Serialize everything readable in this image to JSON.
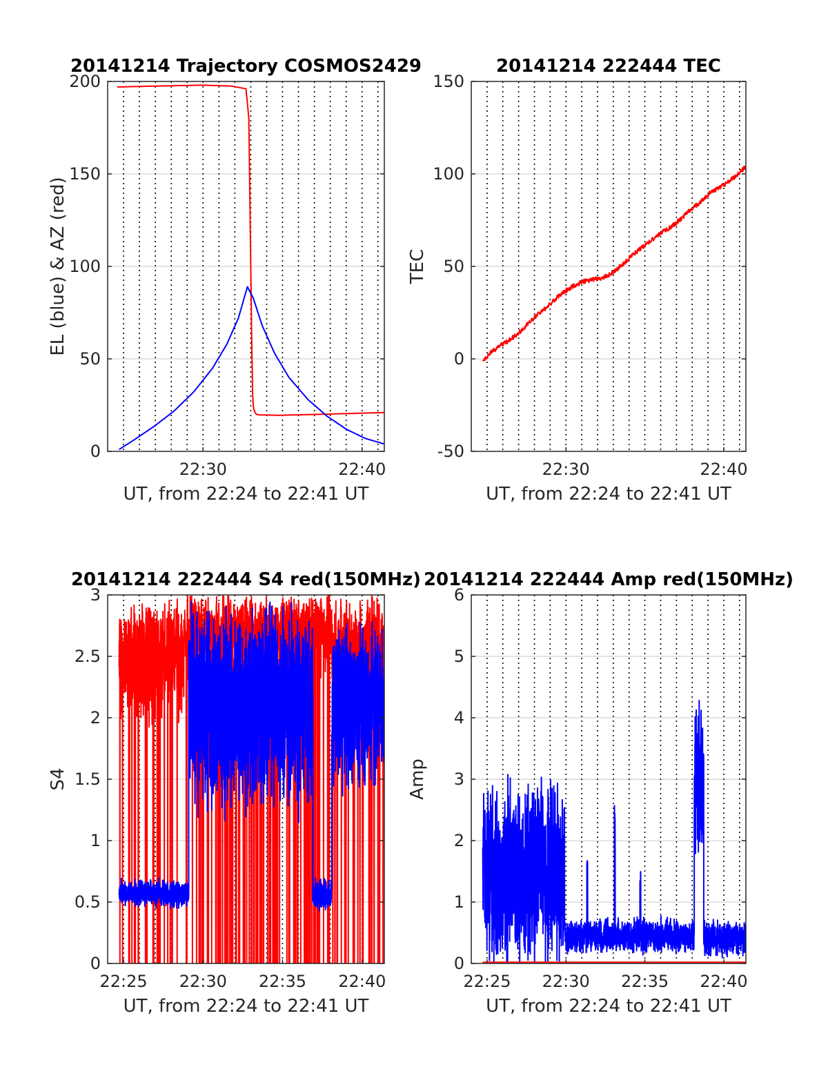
{
  "chart_data": [
    {
      "type": "line",
      "title": "20141214 Trajectory COSMOS2429",
      "xlabel": "UT, from 22:24 to 22:41 UT",
      "ylabel": "EL (blue) & AZ (red)",
      "xlim": [
        22.4,
        22.69
      ],
      "ylim": [
        0,
        200
      ],
      "xticks": [
        {
          "v": 22.5,
          "label": "22:30"
        },
        {
          "v": 22.6667,
          "label": "22:40"
        }
      ],
      "yticks": [
        {
          "v": 0,
          "label": "0"
        },
        {
          "v": 50,
          "label": "50"
        },
        {
          "v": 100,
          "label": "100"
        },
        {
          "v": 150,
          "label": "150"
        },
        {
          "v": 200,
          "label": "200"
        }
      ],
      "grid": "y-solid, x-dotted",
      "vlines": [
        22.4167,
        22.4333,
        22.45,
        22.4667,
        22.4833,
        22.5,
        22.5167,
        22.5333,
        22.55,
        22.5667,
        22.5833,
        22.6,
        22.6167,
        22.6333,
        22.65,
        22.6667,
        22.6833
      ],
      "series": [
        {
          "color": "#ff0000",
          "x": [
            22.41,
            22.45,
            22.5,
            22.53,
            22.545,
            22.548,
            22.5495,
            22.551,
            22.552,
            22.553,
            22.5545,
            22.556,
            22.56,
            22.58,
            22.62,
            22.69
          ],
          "y": [
            197,
            197.5,
            198,
            197.5,
            196,
            180,
            120,
            60,
            30,
            23,
            21,
            20,
            19.7,
            19.5,
            20,
            21
          ]
        },
        {
          "color": "#0000ff",
          "x": [
            22.412,
            22.43,
            22.45,
            22.47,
            22.49,
            22.51,
            22.525,
            22.537,
            22.5465,
            22.5525,
            22.562,
            22.575,
            22.59,
            22.61,
            22.63,
            22.65,
            22.67,
            22.69
          ],
          "y": [
            1,
            7,
            14,
            22,
            32,
            45,
            58,
            72,
            89,
            83,
            68,
            53,
            40,
            28,
            19,
            12,
            7,
            4
          ]
        }
      ]
    },
    {
      "type": "line",
      "title": "20141214 222444 TEC",
      "xlabel": "UT, from 22:24 to 22:41 UT",
      "ylabel": "TEC",
      "xlim": [
        22.4,
        22.69
      ],
      "ylim": [
        -50,
        150
      ],
      "xticks": [
        {
          "v": 22.5,
          "label": "22:30"
        },
        {
          "v": 22.6667,
          "label": "22:40"
        }
      ],
      "yticks": [
        {
          "v": -50,
          "label": "-50"
        },
        {
          "v": 0,
          "label": "0"
        },
        {
          "v": 50,
          "label": "50"
        },
        {
          "v": 100,
          "label": "100"
        },
        {
          "v": 150,
          "label": "150"
        }
      ],
      "grid": "y-solid, x-dotted",
      "vlines": [
        22.4167,
        22.4333,
        22.45,
        22.4667,
        22.4833,
        22.5,
        22.5167,
        22.5333,
        22.55,
        22.5667,
        22.5833,
        22.6,
        22.6167,
        22.6333,
        22.65,
        22.6667,
        22.6833
      ],
      "series": [
        {
          "color": "#ff0000",
          "noise": 1.2,
          "x": [
            22.412,
            22.42,
            22.43,
            22.44,
            22.45,
            22.46,
            22.47,
            22.48,
            22.49,
            22.5,
            22.51,
            22.52,
            22.53,
            22.54,
            22.55,
            22.56,
            22.57,
            22.58,
            22.59,
            22.6,
            22.61,
            22.62,
            22.63,
            22.64,
            22.65,
            22.66,
            22.67,
            22.68,
            22.69
          ],
          "y": [
            -1,
            3,
            7,
            10,
            14,
            19,
            24,
            28,
            33,
            37,
            40,
            42,
            43,
            44,
            47,
            51,
            56,
            60,
            64,
            68,
            71,
            75,
            80,
            84,
            89,
            92,
            95,
            99,
            104
          ]
        }
      ]
    },
    {
      "type": "line",
      "title": "20141214 222444 S4 red(150MHz)",
      "xlabel": "UT, from 22:24 to 22:41 UT",
      "ylabel": "S4",
      "xlim": [
        22.4,
        22.69
      ],
      "ylim": [
        0,
        3
      ],
      "xticks": [
        {
          "v": 22.4167,
          "label": "22:25"
        },
        {
          "v": 22.5,
          "label": "22:30"
        },
        {
          "v": 22.5833,
          "label": "22:35"
        },
        {
          "v": 22.6667,
          "label": "22:40"
        }
      ],
      "yticks": [
        {
          "v": 0,
          "label": "0"
        },
        {
          "v": 0.5,
          "label": "0.5"
        },
        {
          "v": 1,
          "label": "1"
        },
        {
          "v": 1.5,
          "label": "1.5"
        },
        {
          "v": 2,
          "label": "2"
        },
        {
          "v": 2.5,
          "label": "2.5"
        },
        {
          "v": 3,
          "label": "3"
        }
      ],
      "grid": "y-solid, x-dotted",
      "vlines": [
        22.4167,
        22.4333,
        22.45,
        22.4667,
        22.4833,
        22.5,
        22.5167,
        22.5333,
        22.55,
        22.5667,
        22.5833,
        22.6,
        22.6167,
        22.6333,
        22.65,
        22.6667,
        22.6833
      ],
      "series": [
        {
          "color": "#ff0000",
          "noisy": true,
          "segments": [
            {
              "x0": 22.412,
              "x1": 22.48,
              "base": 2.55,
              "amp": 0.5,
              "cap": 3.0,
              "dropouts": 0.04
            },
            {
              "x0": 22.48,
              "x1": 22.635,
              "base": 2.8,
              "amp": 0.4,
              "cap": 3.0,
              "dropouts": 0.07
            },
            {
              "x0": 22.635,
              "x1": 22.69,
              "base": 2.6,
              "amp": 0.5,
              "cap": 3.0,
              "dropouts": 0.05
            }
          ]
        },
        {
          "color": "#0000ff",
          "noisy": true,
          "segments": [
            {
              "x0": 22.412,
              "x1": 22.485,
              "base": 0.57,
              "amp": 0.1,
              "cap": 3.0,
              "dropouts": 0
            },
            {
              "x0": 22.485,
              "x1": 22.615,
              "base": 2.1,
              "amp": 0.8,
              "cap": 3.0,
              "dropouts": 0
            },
            {
              "x0": 22.615,
              "x1": 22.635,
              "base": 0.55,
              "amp": 0.12,
              "cap": 3.0,
              "dropouts": 0
            },
            {
              "x0": 22.635,
              "x1": 22.69,
              "base": 2.1,
              "amp": 0.6,
              "cap": 3.0,
              "dropouts": 0
            }
          ]
        }
      ]
    },
    {
      "type": "line",
      "title": "20141214 222444 Amp red(150MHz)",
      "xlabel": "UT, from 22:24 to 22:41 UT",
      "ylabel": "Amp",
      "xlim": [
        22.4,
        22.69
      ],
      "ylim": [
        0,
        6
      ],
      "xticks": [
        {
          "v": 22.4167,
          "label": "22:25"
        },
        {
          "v": 22.5,
          "label": "22:30"
        },
        {
          "v": 22.5833,
          "label": "22:35"
        },
        {
          "v": 22.6667,
          "label": "22:40"
        }
      ],
      "yticks": [
        {
          "v": 0,
          "label": "0"
        },
        {
          "v": 1,
          "label": "1"
        },
        {
          "v": 2,
          "label": "2"
        },
        {
          "v": 3,
          "label": "3"
        },
        {
          "v": 4,
          "label": "4"
        },
        {
          "v": 5,
          "label": "5"
        },
        {
          "v": 6,
          "label": "6"
        }
      ],
      "grid": "y-solid, x-dotted",
      "vlines": [
        22.4167,
        22.4333,
        22.45,
        22.4667,
        22.4833,
        22.5,
        22.5167,
        22.5333,
        22.55,
        22.5667,
        22.5833,
        22.6,
        22.6167,
        22.6333,
        22.65,
        22.6667,
        22.6833
      ],
      "series": [
        {
          "color": "#0000ff",
          "noisy": true,
          "floor": 0,
          "segments": [
            {
              "x0": 22.412,
              "x1": 22.4985,
              "base": 1.5,
              "amp": 1.3,
              "cap": 3.7,
              "dropouts": 0
            },
            {
              "x0": 22.4985,
              "x1": 22.6355,
              "base": 0.45,
              "amp": 0.25,
              "cap": 2.8,
              "dropouts": 0,
              "spikes": [
                [
                  22.5225,
                  1.85
                ],
                [
                  22.5515,
                  2.75
                ],
                [
                  22.5785,
                  1.65
                ]
              ]
            },
            {
              "x0": 22.6355,
              "x1": 22.6455,
              "base": 2.9,
              "amp": 1.1,
              "cap": 4.4,
              "dropouts": 0
            },
            {
              "x0": 22.6455,
              "x1": 22.69,
              "base": 0.4,
              "amp": 0.25,
              "cap": 1.3,
              "dropouts": 0
            }
          ]
        },
        {
          "color": "#ff0000",
          "noisy": false,
          "x": [
            22.412,
            22.69
          ],
          "y": [
            0.02,
            0.02
          ]
        }
      ]
    }
  ]
}
